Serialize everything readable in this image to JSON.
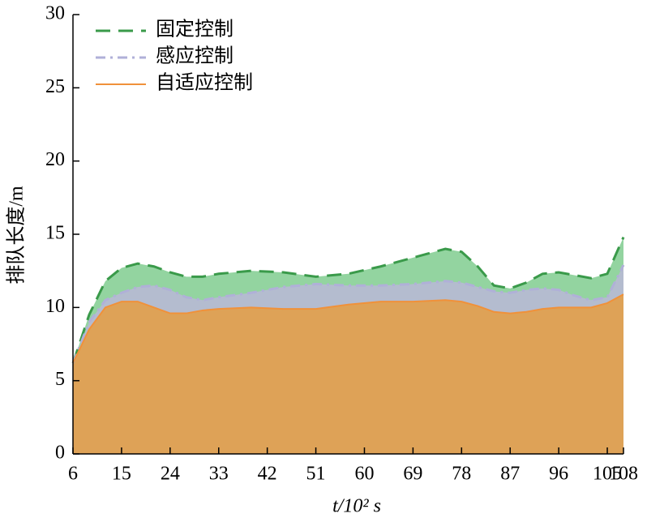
{
  "chart_data": {
    "type": "area",
    "xlabel": "t/10² s",
    "ylabel": "排队长度/m",
    "x": [
      6,
      9,
      12,
      15,
      18,
      21,
      24,
      27,
      30,
      33,
      39,
      45,
      51,
      57,
      63,
      69,
      75,
      78,
      81,
      84,
      87,
      90,
      93,
      96,
      99,
      102,
      105,
      108
    ],
    "series": [
      {
        "name": "固定控制",
        "color": "#3a9a4a",
        "fill": "#93d4a0",
        "dash": "dashed",
        "values": [
          6.2,
          9.5,
          11.8,
          12.7,
          13.0,
          12.8,
          12.4,
          12.1,
          12.1,
          12.3,
          12.5,
          12.4,
          12.1,
          12.3,
          12.8,
          13.4,
          14.0,
          13.8,
          12.8,
          11.5,
          11.3,
          11.7,
          12.3,
          12.4,
          12.2,
          12.0,
          12.3,
          14.8
        ]
      },
      {
        "name": "感应控制",
        "color": "#b0b0d8",
        "fill": "#b4bccf",
        "dash": "dashdot",
        "values": [
          6.2,
          9.0,
          10.5,
          11.0,
          11.4,
          11.5,
          11.2,
          10.7,
          10.5,
          10.7,
          11.0,
          11.4,
          11.6,
          11.5,
          11.5,
          11.6,
          11.8,
          11.7,
          11.4,
          11.1,
          11.0,
          11.2,
          11.3,
          11.2,
          10.8,
          10.5,
          10.7,
          12.9
        ]
      },
      {
        "name": "自适应控制",
        "color": "#f0913a",
        "fill": "#dea257",
        "dash": "solid",
        "values": [
          6.2,
          8.5,
          10.0,
          10.4,
          10.4,
          10.0,
          9.6,
          9.6,
          9.8,
          9.9,
          10.0,
          9.9,
          9.9,
          10.2,
          10.4,
          10.4,
          10.5,
          10.4,
          10.1,
          9.7,
          9.6,
          9.7,
          9.9,
          10.0,
          10.0,
          10.0,
          10.3,
          10.9
        ]
      }
    ],
    "xlim": [
      6,
      108
    ],
    "xticks": [
      6,
      15,
      24,
      33,
      42,
      51,
      60,
      69,
      78,
      87,
      96,
      105,
      108
    ],
    "ylim": [
      0,
      30
    ],
    "yticks": [
      0,
      5,
      10,
      15,
      20,
      25,
      30
    ],
    "legend": "upper left"
  }
}
